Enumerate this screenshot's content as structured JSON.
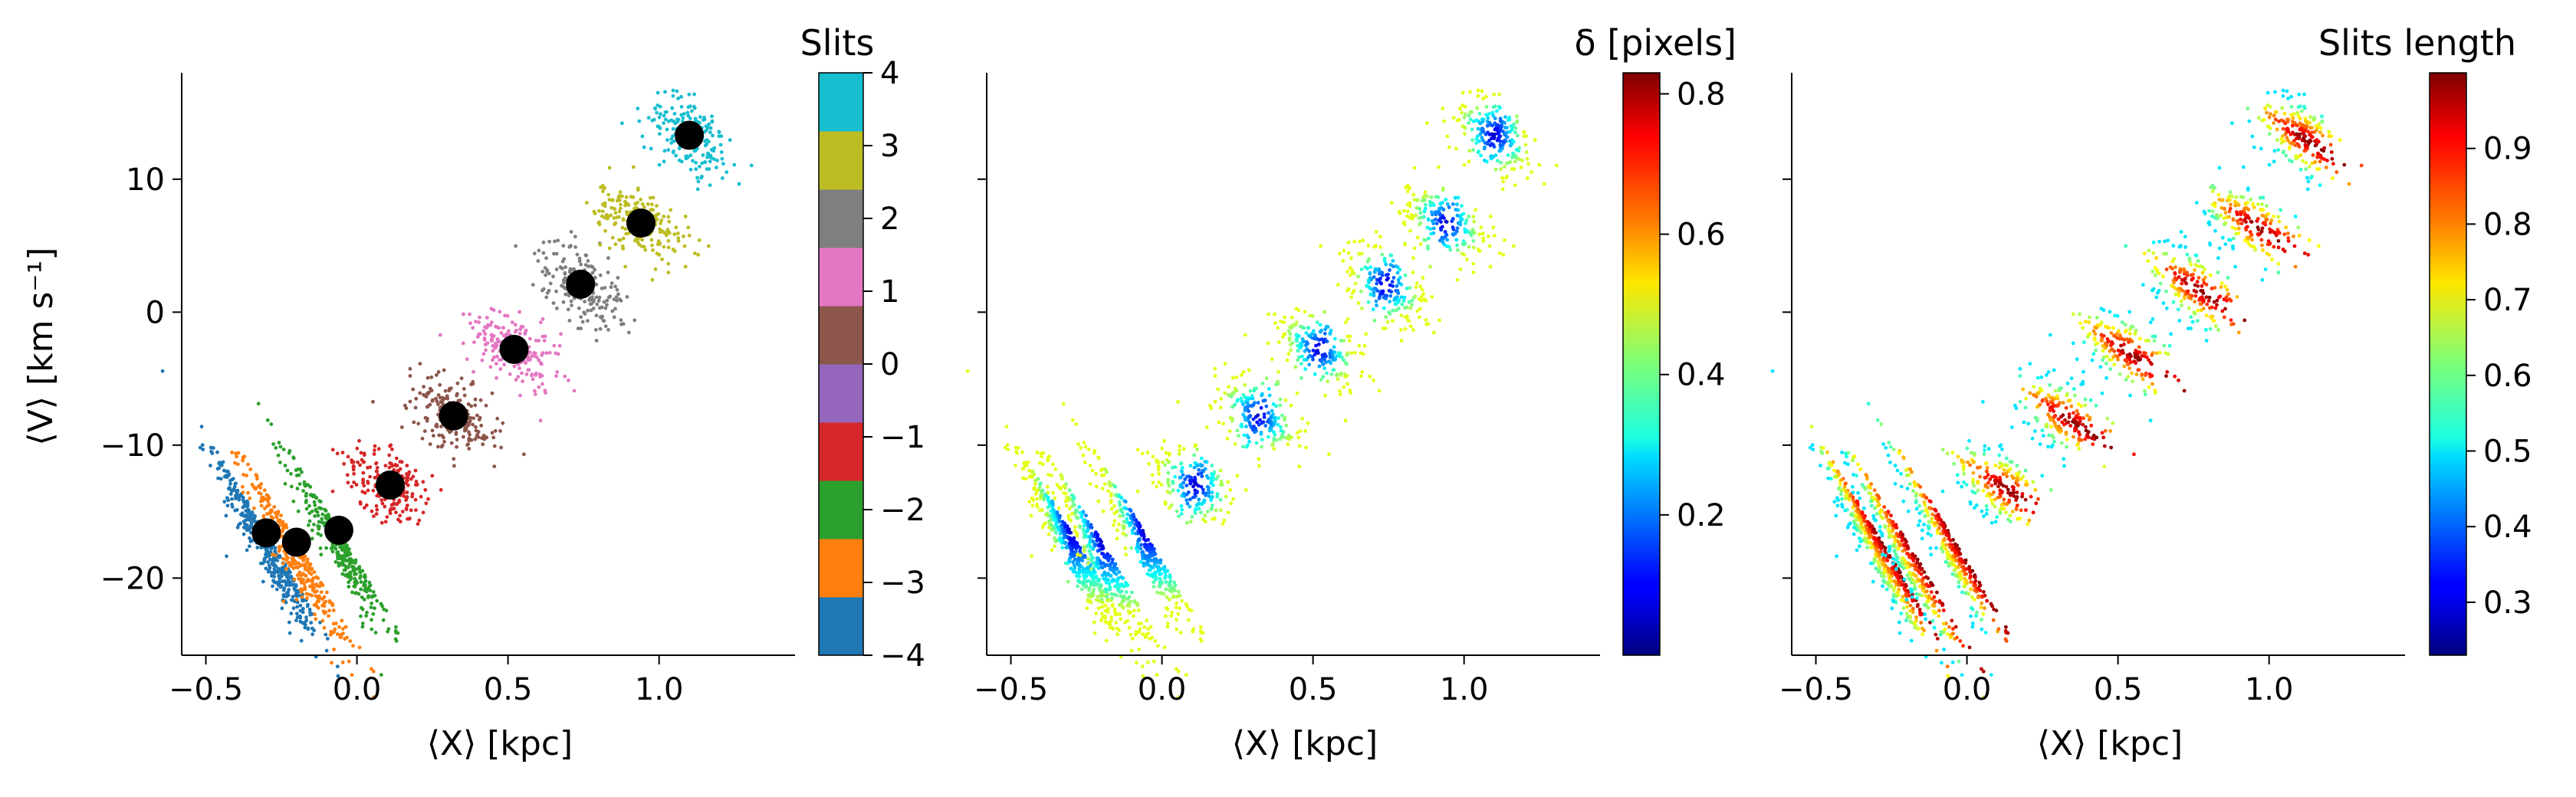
{
  "chart_data": [
    {
      "type": "scatter",
      "panel": "slits",
      "xlabel": "⟨X⟩ [kpc]",
      "ylabel": "⟨V⟩ [km s⁻¹]",
      "xlim": [
        -0.58,
        1.45
      ],
      "ylim": [
        -25.8,
        18.0
      ],
      "xticks": [
        -0.5,
        0.0,
        0.5,
        1.0
      ],
      "xtick_labels": [
        "−0.5",
        "0.0",
        "0.5",
        "1.0"
      ],
      "yticks": [
        -20,
        -10,
        0,
        10
      ],
      "ytick_labels": [
        "−20",
        "−10",
        "0",
        "10"
      ],
      "colorbar": {
        "title": "Slits",
        "type": "discrete",
        "range": [
          -4,
          4
        ],
        "ticks": [
          -4,
          -3,
          -2,
          -1,
          0,
          1,
          2,
          3,
          4
        ],
        "tick_labels": [
          "−4",
          "−3",
          "−2",
          "−1",
          "0",
          "1",
          "2",
          "3",
          "4"
        ],
        "colors": [
          "#1f77b4",
          "#ff7f0e",
          "#2ca02c",
          "#d62728",
          "#9467bd",
          "#8c564b",
          "#e377c2",
          "#7f7f7f",
          "#bcbd22",
          "#17becf"
        ]
      },
      "series": [
        {
          "slit": -4,
          "color": "#1f77b4",
          "center": [
            -0.3,
            -16.6
          ],
          "count": 420
        },
        {
          "slit": -3,
          "color": "#ff7f0e",
          "center": [
            -0.2,
            -17.2
          ],
          "count": 320
        },
        {
          "slit": -2,
          "color": "#2ca02c",
          "center": [
            -0.06,
            -16.5
          ],
          "count": 300
        },
        {
          "slit": -1,
          "color": "#d62728",
          "center": [
            0.11,
            -13.0
          ],
          "count": 200
        },
        {
          "slit": 0,
          "color": "#8c564b",
          "center": [
            0.32,
            -7.8
          ],
          "count": 200
        },
        {
          "slit": 1,
          "color": "#e377c2",
          "center": [
            0.52,
            -2.8
          ],
          "count": 200
        },
        {
          "slit": 2,
          "color": "#7f7f7f",
          "center": [
            0.74,
            2.1
          ],
          "count": 200
        },
        {
          "slit": 3,
          "color": "#bcbd22",
          "center": [
            0.94,
            6.7
          ],
          "count": 200
        },
        {
          "slit": 4,
          "color": "#17becf",
          "center": [
            1.1,
            13.3
          ],
          "count": 220
        }
      ],
      "mean_points": {
        "color": "#000000",
        "x": [
          -0.3,
          -0.2,
          -0.06,
          0.11,
          0.32,
          0.52,
          0.74,
          0.94,
          1.1
        ],
        "y": [
          -16.6,
          -17.3,
          -16.4,
          -13.0,
          -7.8,
          -2.8,
          2.1,
          6.7,
          13.3
        ]
      }
    },
    {
      "type": "scatter",
      "panel": "delta",
      "xlabel": "⟨X⟩ [kpc]",
      "xlim": [
        -0.58,
        1.45
      ],
      "ylim": [
        -25.8,
        18.0
      ],
      "xticks": [
        -0.5,
        0.0,
        0.5,
        1.0
      ],
      "xtick_labels": [
        "−0.5",
        "0.0",
        "0.5",
        "1.0"
      ],
      "yticks": [
        -20,
        -10,
        0,
        10
      ],
      "colorbar": {
        "title": "δ [pixels]",
        "colormap": "jet",
        "range": [
          0.0,
          0.83
        ],
        "ticks": [
          0.2,
          0.4,
          0.6,
          0.8
        ],
        "tick_labels": [
          "0.2",
          "0.4",
          "0.6",
          "0.8"
        ]
      }
    },
    {
      "type": "scatter",
      "panel": "slits_length",
      "xlabel": "⟨X⟩ [kpc]",
      "xlim": [
        -0.58,
        1.45
      ],
      "ylim": [
        -25.8,
        18.0
      ],
      "xticks": [
        -0.5,
        0.0,
        0.5,
        1.0
      ],
      "xtick_labels": [
        "−0.5",
        "0.0",
        "0.5",
        "1.0"
      ],
      "yticks": [
        -20,
        -10,
        0,
        10
      ],
      "colorbar": {
        "title": "Slits length",
        "colormap": "jet",
        "range": [
          0.23,
          1.0
        ],
        "ticks": [
          0.3,
          0.4,
          0.5,
          0.6,
          0.7,
          0.8,
          0.9
        ],
        "tick_labels": [
          "0.3",
          "0.4",
          "0.5",
          "0.6",
          "0.7",
          "0.8",
          "0.9"
        ]
      }
    }
  ]
}
